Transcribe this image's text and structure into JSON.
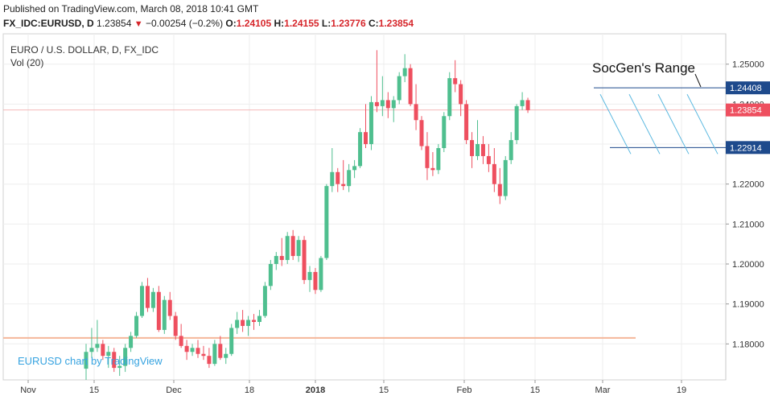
{
  "header": {
    "published": "Published on TradingView.com, March 08, 2018 10:41 GMT",
    "symbol": "FX_IDC:EURUSD, D",
    "last": "1.23854",
    "change": "−0.00254 (−0.2%)",
    "o_label": "O:",
    "o": "1.24105",
    "h_label": "H:",
    "h": "1.24155",
    "l_label": "L:",
    "l": "1.23776",
    "c_label": "C:",
    "c": "1.23854",
    "down_color": "#d6252a"
  },
  "chart_title": "EURO / U.S. DOLLAR, D, FX_IDC",
  "volume_label": "Vol (20)",
  "watermark": "EURUSD chart by TradingView",
  "annotation": "SocGen's Range",
  "chart_data": {
    "type": "candlestick",
    "title": "EURO / U.S. DOLLAR, D, FX_IDC",
    "x_tick_labels": [
      "Nov",
      "15",
      "Dec",
      "18",
      "2018",
      "15",
      "Feb",
      "15",
      "Mar",
      "19"
    ],
    "y_tick_labels": [
      "1.25000",
      "1.24000",
      "1.23000",
      "1.22000",
      "1.21000",
      "1.20000",
      "1.19000",
      "1.18000"
    ],
    "ylim": [
      1.171,
      1.2576
    ],
    "up_color": "#4fbf8f",
    "down_color": "#ee4f5f",
    "price_labels": [
      {
        "value": 1.24408,
        "text": "1.24408",
        "color": "#1e4a8c"
      },
      {
        "value": 1.23854,
        "text": "1.23854",
        "color": "#ee4f5f"
      },
      {
        "value": 1.22914,
        "text": "1.22914",
        "color": "#1e4a8c"
      }
    ],
    "horizontal_lines": [
      {
        "name": "range-top",
        "value": 1.24408,
        "color": "#1e4a8c"
      },
      {
        "name": "range-bottom",
        "value": 1.22914,
        "color": "#1e4a8c"
      },
      {
        "name": "last-price",
        "value": 1.23854,
        "color": "#f2a9a9"
      },
      {
        "name": "support",
        "value": 1.1815,
        "color": "#f4b79a"
      }
    ],
    "candles": [
      [
        1.1738,
        1.18,
        1.171,
        1.178
      ],
      [
        1.178,
        1.184,
        1.1765,
        1.179
      ],
      [
        1.179,
        1.186,
        1.178,
        1.18
      ],
      [
        1.18,
        1.181,
        1.176,
        1.177
      ],
      [
        1.177,
        1.1795,
        1.174,
        1.178
      ],
      [
        1.178,
        1.179,
        1.173,
        1.174
      ],
      [
        1.174,
        1.177,
        1.172,
        1.1745
      ],
      [
        1.1745,
        1.18,
        1.173,
        1.179
      ],
      [
        1.179,
        1.183,
        1.178,
        1.182
      ],
      [
        1.182,
        1.188,
        1.1815,
        1.187
      ],
      [
        1.187,
        1.1955,
        1.1865,
        1.1945
      ],
      [
        1.1945,
        1.1965,
        1.188,
        1.189
      ],
      [
        1.189,
        1.194,
        1.188,
        1.193
      ],
      [
        1.193,
        1.1945,
        1.183,
        1.1835
      ],
      [
        1.1835,
        1.192,
        1.1825,
        1.191
      ],
      [
        1.191,
        1.193,
        1.186,
        1.187
      ],
      [
        1.187,
        1.188,
        1.181,
        1.182
      ],
      [
        1.182,
        1.185,
        1.179,
        1.1795
      ],
      [
        1.1795,
        1.181,
        1.176,
        1.178
      ],
      [
        1.178,
        1.18,
        1.177,
        1.179
      ],
      [
        1.179,
        1.181,
        1.1765,
        1.1775
      ],
      [
        1.1775,
        1.1795,
        1.176,
        1.177
      ],
      [
        1.177,
        1.179,
        1.174,
        1.175
      ],
      [
        1.175,
        1.181,
        1.1745,
        1.18
      ],
      [
        1.18,
        1.182,
        1.176,
        1.1765
      ],
      [
        1.1765,
        1.179,
        1.175,
        1.1775
      ],
      [
        1.1775,
        1.185,
        1.177,
        1.184
      ],
      [
        1.184,
        1.188,
        1.1825,
        1.186
      ],
      [
        1.186,
        1.1885,
        1.183,
        1.1845
      ],
      [
        1.1845,
        1.187,
        1.182,
        1.186
      ],
      [
        1.186,
        1.1875,
        1.1835,
        1.1855
      ],
      [
        1.1855,
        1.1885,
        1.1845,
        1.187
      ],
      [
        1.187,
        1.1955,
        1.1865,
        1.1945
      ],
      [
        1.1945,
        1.201,
        1.1935,
        1.2
      ],
      [
        1.2,
        1.203,
        1.1985,
        1.202
      ],
      [
        1.202,
        1.2065,
        1.1995,
        1.201
      ],
      [
        1.201,
        1.208,
        1.2,
        1.207
      ],
      [
        1.207,
        1.2085,
        1.201,
        1.202
      ],
      [
        1.202,
        1.207,
        1.2005,
        1.206
      ],
      [
        1.206,
        1.207,
        1.195,
        1.196
      ],
      [
        1.196,
        1.1995,
        1.193,
        1.198
      ],
      [
        1.198,
        1.199,
        1.1925,
        1.1935
      ],
      [
        1.1935,
        1.202,
        1.193,
        1.2015
      ],
      [
        1.2015,
        1.22,
        1.201,
        1.2195
      ],
      [
        1.2195,
        1.229,
        1.218,
        1.223
      ],
      [
        1.223,
        1.224,
        1.218,
        1.22
      ],
      [
        1.22,
        1.226,
        1.2185,
        1.2195
      ],
      [
        1.2195,
        1.225,
        1.218,
        1.2235
      ],
      [
        1.2235,
        1.226,
        1.2215,
        1.2245
      ],
      [
        1.2245,
        1.234,
        1.224,
        1.233
      ],
      [
        1.233,
        1.24,
        1.229,
        1.23
      ],
      [
        1.23,
        1.242,
        1.2285,
        1.2405
      ],
      [
        1.2405,
        1.2535,
        1.238,
        1.2395
      ],
      [
        1.2395,
        1.247,
        1.237,
        1.241
      ],
      [
        1.241,
        1.243,
        1.2365,
        1.239
      ],
      [
        1.239,
        1.242,
        1.2355,
        1.241
      ],
      [
        1.241,
        1.248,
        1.24,
        1.247
      ],
      [
        1.247,
        1.2525,
        1.2455,
        1.249
      ],
      [
        1.249,
        1.25,
        1.2395,
        1.24
      ],
      [
        1.24,
        1.245,
        1.2335,
        1.236
      ],
      [
        1.236,
        1.237,
        1.2285,
        1.2295
      ],
      [
        1.2295,
        1.233,
        1.221,
        1.224
      ],
      [
        1.224,
        1.228,
        1.222,
        1.2235
      ],
      [
        1.2235,
        1.23,
        1.2225,
        1.229
      ],
      [
        1.229,
        1.238,
        1.228,
        1.237
      ],
      [
        1.237,
        1.248,
        1.236,
        1.2465
      ],
      [
        1.2465,
        1.251,
        1.243,
        1.245
      ],
      [
        1.245,
        1.246,
        1.237,
        1.24
      ],
      [
        1.24,
        1.241,
        1.23,
        1.231
      ],
      [
        1.231,
        1.233,
        1.224,
        1.227
      ],
      [
        1.227,
        1.236,
        1.226,
        1.23
      ],
      [
        1.23,
        1.232,
        1.225,
        1.227
      ],
      [
        1.227,
        1.23,
        1.223,
        1.225
      ],
      [
        1.225,
        1.229,
        1.218,
        1.22
      ],
      [
        1.22,
        1.224,
        1.215,
        1.217
      ],
      [
        1.217,
        1.227,
        1.216,
        1.226
      ],
      [
        1.226,
        1.233,
        1.225,
        1.231
      ],
      [
        1.231,
        1.24,
        1.23,
        1.2395
      ],
      [
        1.2395,
        1.243,
        1.2385,
        1.241
      ],
      [
        1.241,
        1.2416,
        1.2378,
        1.2385
      ]
    ]
  }
}
